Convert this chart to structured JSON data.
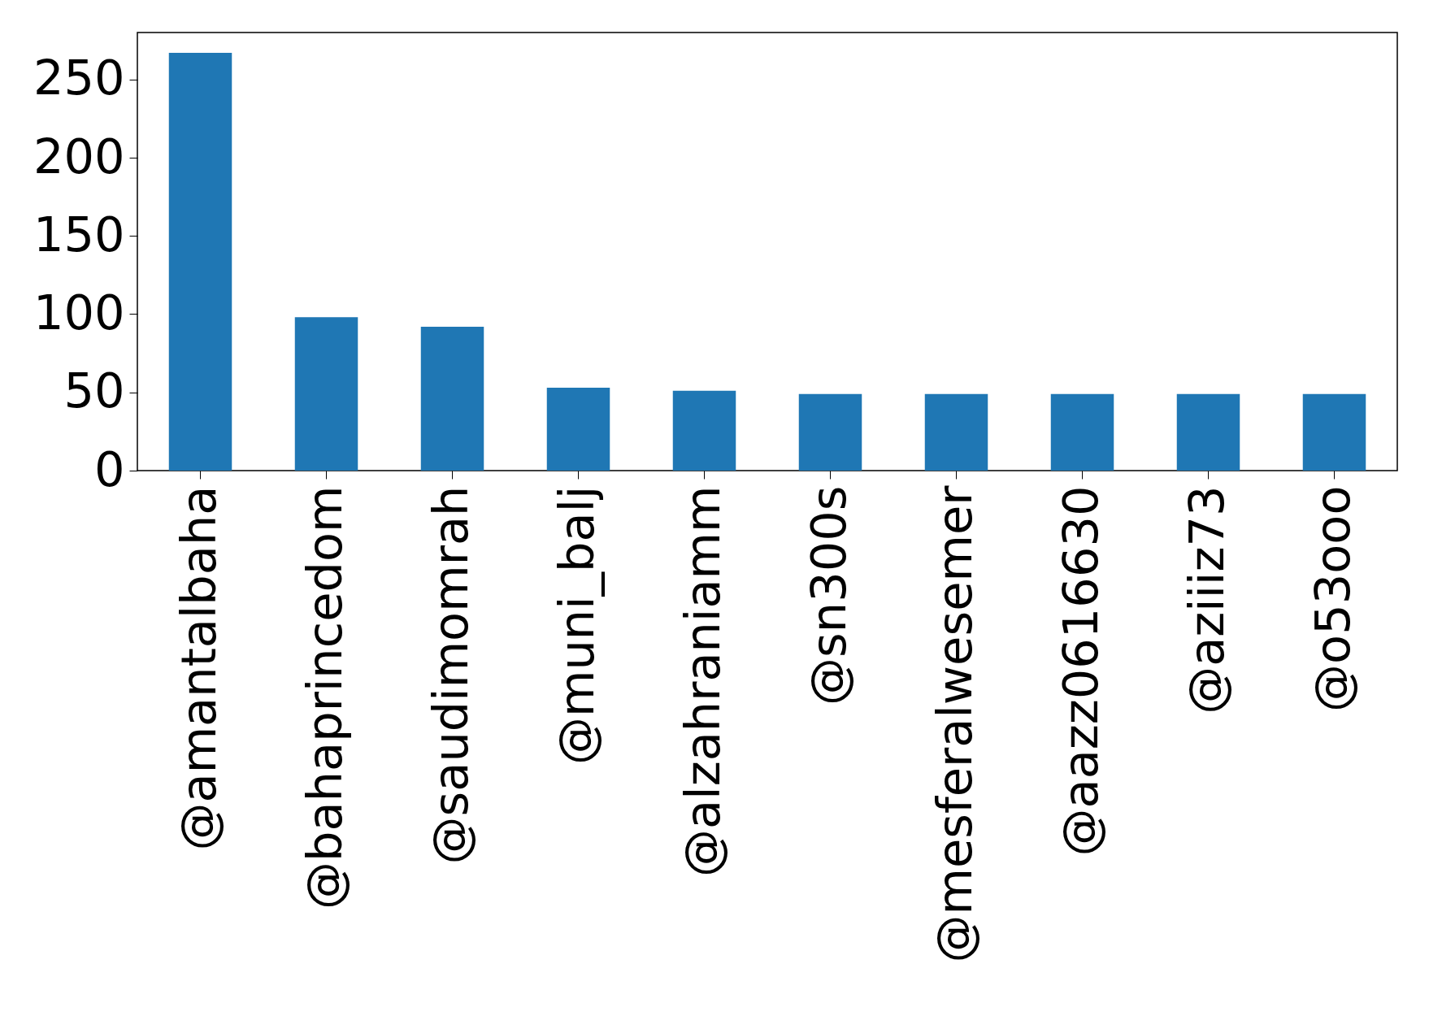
{
  "chart_data": {
    "type": "bar",
    "categories": [
      "@amantalbaha",
      "@bahaprincedom",
      "@saudimomrah",
      "@muni_balj",
      "@alzahraniamm",
      "@sn300s",
      "@mesferalwesemer",
      "@aazz0616630",
      "@aziiiz73",
      "@o53ooo"
    ],
    "values": [
      267,
      98,
      92,
      53,
      51,
      49,
      49,
      49,
      49,
      49
    ],
    "color": "#1f77b4",
    "ylim": [
      0,
      280
    ],
    "yticks": [
      0,
      50,
      100,
      150,
      200,
      250
    ],
    "grid": false
  }
}
